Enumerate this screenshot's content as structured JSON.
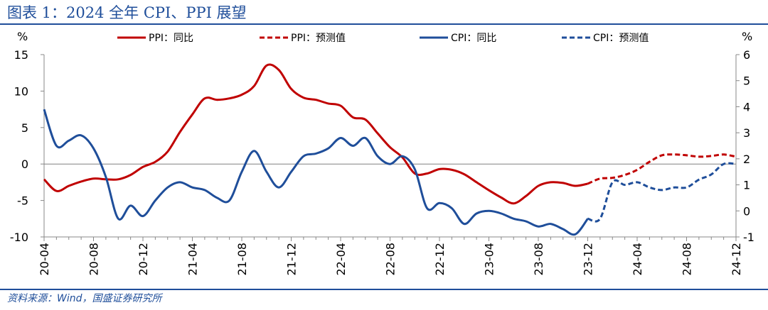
{
  "figure": {
    "title": "图表 1：2024 全年 CPI、PPI 展望",
    "source": "资料来源：Wind，国盛证券研究所"
  },
  "colors": {
    "ppi": "#c00000",
    "cpi": "#1f4e9a",
    "title": "#1f4e9a",
    "zero_line": "#808080"
  },
  "chart_data": {
    "type": "line",
    "left_axis": {
      "unit": "%",
      "range": [
        -10,
        15
      ],
      "ticks": [
        -10,
        -5,
        0,
        5,
        10,
        15
      ]
    },
    "right_axis": {
      "unit": "%",
      "range": [
        -1,
        6
      ],
      "ticks": [
        -1,
        0,
        1,
        2,
        3,
        4,
        5,
        6
      ]
    },
    "x_range": [
      "2020-04",
      "2024-12"
    ],
    "x_ticks": [
      "20-04",
      "20-08",
      "20-12",
      "21-04",
      "21-08",
      "21-12",
      "22-04",
      "22-08",
      "22-12",
      "23-04",
      "23-08",
      "23-12",
      "24-04",
      "24-08",
      "24-12"
    ],
    "grid": false,
    "legend_position": "top",
    "series": [
      {
        "name": "PPI：同比",
        "axis": "left",
        "style": "solid",
        "color_key": "ppi",
        "x": [
          "2020-04",
          "2020-05",
          "2020-06",
          "2020-07",
          "2020-08",
          "2020-09",
          "2020-10",
          "2020-11",
          "2020-12",
          "2021-01",
          "2021-02",
          "2021-03",
          "2021-04",
          "2021-05",
          "2021-06",
          "2021-07",
          "2021-08",
          "2021-09",
          "2021-10",
          "2021-11",
          "2021-12",
          "2022-01",
          "2022-02",
          "2022-03",
          "2022-04",
          "2022-05",
          "2022-06",
          "2022-07",
          "2022-08",
          "2022-09",
          "2022-10",
          "2022-11",
          "2022-12",
          "2023-01",
          "2023-02",
          "2023-03",
          "2023-04",
          "2023-05",
          "2023-06",
          "2023-07",
          "2023-08",
          "2023-09",
          "2023-10",
          "2023-11",
          "2023-12"
        ],
        "values": [
          -2.1,
          -3.7,
          -3.0,
          -2.4,
          -2.0,
          -2.1,
          -2.1,
          -1.5,
          -0.4,
          0.3,
          1.7,
          4.4,
          6.8,
          9.0,
          8.8,
          9.0,
          9.5,
          10.7,
          13.5,
          12.9,
          10.3,
          9.1,
          8.8,
          8.3,
          8.0,
          6.4,
          6.1,
          4.2,
          2.3,
          0.9,
          -1.3,
          -1.3,
          -0.7,
          -0.8,
          -1.4,
          -2.5,
          -3.6,
          -4.6,
          -5.4,
          -4.4,
          -3.0,
          -2.5,
          -2.6,
          -3.0,
          -2.7
        ]
      },
      {
        "name": "PPI：预测值",
        "axis": "left",
        "style": "dashed",
        "color_key": "ppi",
        "x": [
          "2023-12",
          "2024-01",
          "2024-02",
          "2024-03",
          "2024-04",
          "2024-05",
          "2024-06",
          "2024-07",
          "2024-08",
          "2024-09",
          "2024-10",
          "2024-11",
          "2024-12"
        ],
        "values": [
          -2.7,
          -2.0,
          -1.9,
          -1.5,
          -0.8,
          0.3,
          1.2,
          1.3,
          1.2,
          1.0,
          1.1,
          1.3,
          1.0
        ]
      },
      {
        "name": "CPI：同比",
        "axis": "right",
        "style": "solid",
        "color_key": "cpi",
        "x": [
          "2020-04",
          "2020-05",
          "2020-06",
          "2020-07",
          "2020-08",
          "2020-09",
          "2020-10",
          "2020-11",
          "2020-12",
          "2021-01",
          "2021-02",
          "2021-03",
          "2021-04",
          "2021-05",
          "2021-06",
          "2021-07",
          "2021-08",
          "2021-09",
          "2021-10",
          "2021-11",
          "2021-12",
          "2022-01",
          "2022-02",
          "2022-03",
          "2022-04",
          "2022-05",
          "2022-06",
          "2022-07",
          "2022-08",
          "2022-09",
          "2022-10",
          "2022-11",
          "2022-12",
          "2023-01",
          "2023-02",
          "2023-03",
          "2023-04",
          "2023-05",
          "2023-06",
          "2023-07",
          "2023-08",
          "2023-09",
          "2023-10",
          "2023-11",
          "2023-12"
        ],
        "values": [
          3.9,
          2.5,
          2.7,
          2.9,
          2.4,
          1.3,
          -0.3,
          0.2,
          -0.2,
          0.4,
          0.9,
          1.1,
          0.9,
          0.8,
          0.5,
          0.4,
          1.5,
          2.3,
          1.5,
          0.9,
          1.5,
          2.1,
          2.2,
          2.4,
          2.8,
          2.5,
          2.8,
          2.1,
          1.8,
          2.1,
          1.6,
          0.1,
          0.3,
          0.1,
          -0.5,
          -0.1,
          0.0,
          -0.1,
          -0.3,
          -0.4,
          -0.6,
          -0.5,
          -0.7,
          -0.9,
          -0.3
        ]
      },
      {
        "name": "CPI：预测值",
        "axis": "right",
        "style": "dashed",
        "color_key": "cpi",
        "x": [
          "2023-12",
          "2024-01",
          "2024-02",
          "2024-03",
          "2024-04",
          "2024-05",
          "2024-06",
          "2024-07",
          "2024-08",
          "2024-09",
          "2024-10",
          "2024-11",
          "2024-12"
        ],
        "values": [
          -0.3,
          -0.3,
          1.1,
          1.0,
          1.1,
          0.9,
          0.8,
          0.9,
          0.9,
          1.2,
          1.4,
          1.8,
          1.8
        ]
      }
    ]
  }
}
